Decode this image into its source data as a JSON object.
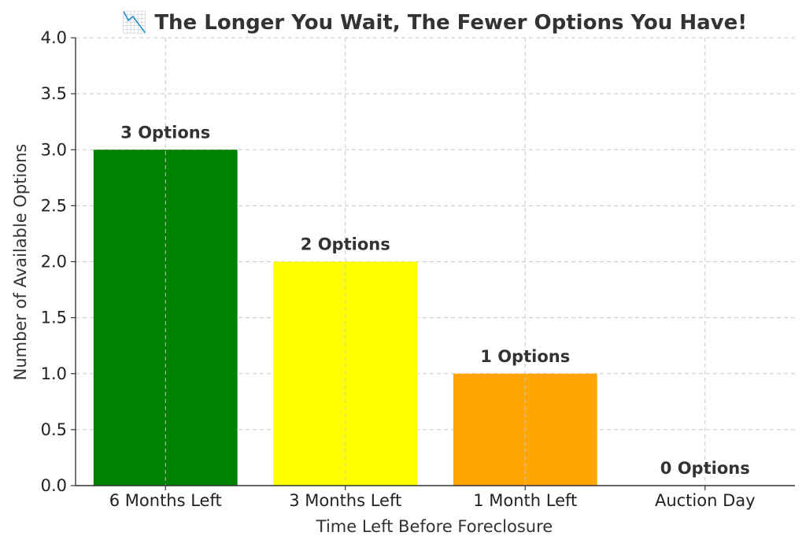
{
  "chart_data": {
    "type": "bar",
    "title": "📉 The Longer You Wait, The Fewer Options You Have!",
    "xlabel": "Time Left Before Foreclosure",
    "ylabel": "Number of Available Options",
    "categories": [
      "6 Months Left",
      "3 Months Left",
      "1 Month Left",
      "Auction Day"
    ],
    "values": [
      3,
      2,
      1,
      0
    ],
    "data_labels": [
      "3 Options",
      "2 Options",
      "1 Options",
      "0 Options"
    ],
    "bar_colors": [
      "#008000",
      "#ffff00",
      "#ffa500",
      "#ff0000"
    ],
    "ylim": [
      0,
      4.0
    ],
    "yticks": [
      0.0,
      0.5,
      1.0,
      1.5,
      2.0,
      2.5,
      3.0,
      3.5,
      4.0
    ],
    "ytick_labels": [
      "0.0",
      "0.5",
      "1.0",
      "1.5",
      "2.0",
      "2.5",
      "3.0",
      "3.5",
      "4.0"
    ],
    "grid": true,
    "legend": "none"
  }
}
